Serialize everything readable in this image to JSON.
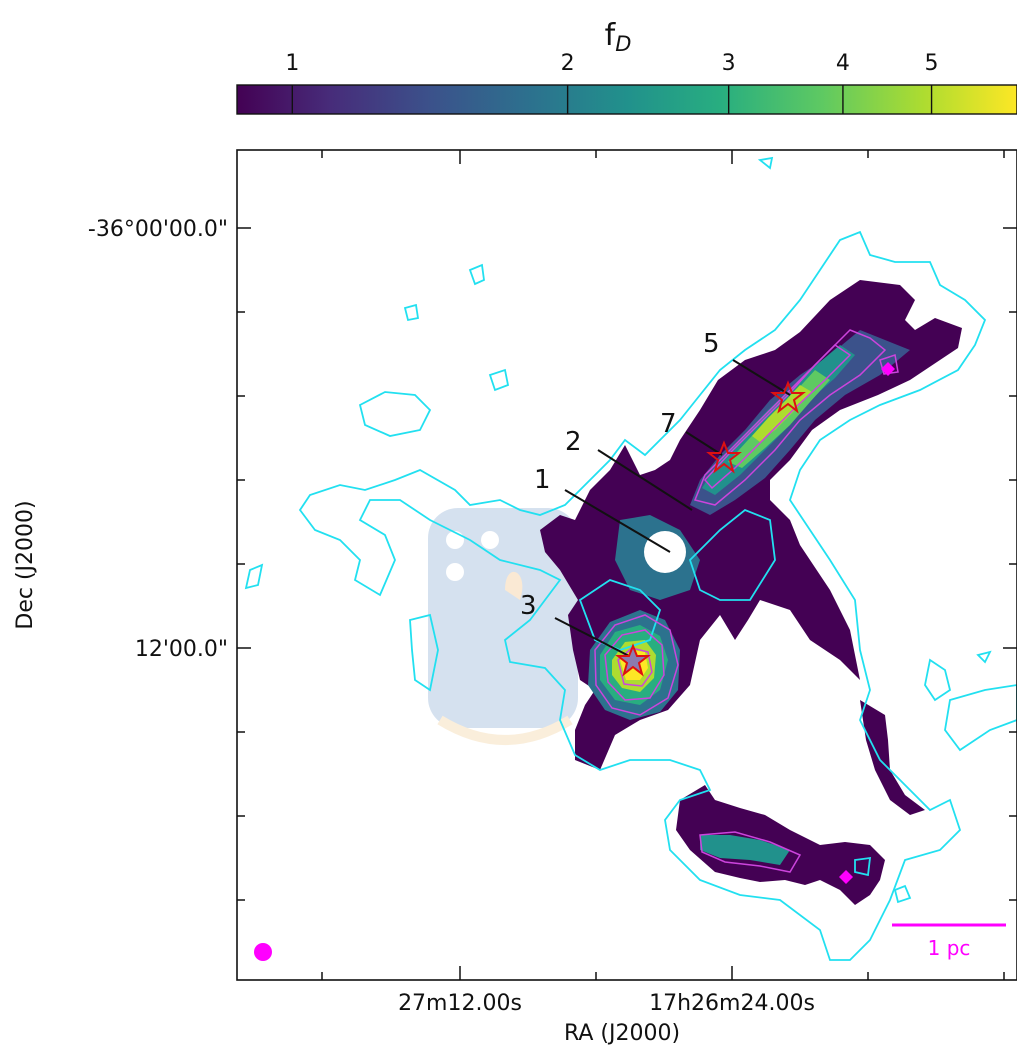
{
  "chart_data": {
    "type": "heatmap",
    "title": "",
    "colorbar": {
      "label_main": "f",
      "label_sub": "D",
      "scale": "log",
      "range": [
        0.87,
        6.2
      ],
      "ticks": [
        1,
        2,
        3,
        4,
        5
      ],
      "tick_labels": [
        "1",
        "2",
        "3",
        "4",
        "5"
      ],
      "colormap": [
        "#440154",
        "#472c7a",
        "#3b528b",
        "#2c728e",
        "#21918c",
        "#28ae80",
        "#5ec962",
        "#addc30",
        "#fde725"
      ]
    },
    "xlabel": "RA (J2000)",
    "ylabel": "Dec (J2000)",
    "x_tick_labels": [
      "27m12.00s",
      "17h26m24.00s"
    ],
    "y_tick_labels": [
      "-36°00'00.0\"",
      "12'00.0\""
    ],
    "grid": false,
    "contour_colors": {
      "outer": "#22e0f0",
      "inner": "#cc44dd"
    },
    "sources": [
      {
        "id": "1",
        "label": "1"
      },
      {
        "id": "2",
        "label": "2"
      },
      {
        "id": "3",
        "label": "3"
      },
      {
        "id": "5",
        "label": "5"
      },
      {
        "id": "7",
        "label": "7"
      }
    ],
    "scale_bar": {
      "label": "1 pc",
      "color": "#ff00ff"
    },
    "beam": {
      "color": "#ff00ff",
      "placement": "bottom-left"
    },
    "colors": {
      "stars": "#dd1111",
      "annotation_lines": "#111111"
    }
  }
}
